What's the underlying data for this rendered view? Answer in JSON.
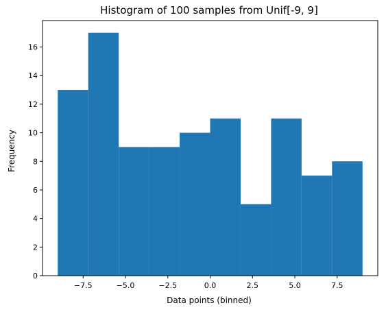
{
  "chart_data": {
    "type": "bar",
    "title": "Histogram of 100 samples from Unif[-9, 9]",
    "xlabel": "Data points (binned)",
    "ylabel": "Frequency",
    "bin_edges": [
      -9.0,
      -7.2,
      -5.4,
      -3.6,
      -1.8,
      0.0,
      1.8,
      3.6,
      5.4,
      7.2,
      9.0
    ],
    "values": [
      13,
      17,
      9,
      9,
      10,
      11,
      5,
      11,
      7,
      8
    ],
    "xlim": [
      -9.9,
      9.9
    ],
    "ylim": [
      0,
      17.85
    ],
    "xticks": [
      -7.5,
      -5.0,
      -2.5,
      0.0,
      2.5,
      5.0,
      7.5
    ],
    "xtick_labels": [
      "−7.5",
      "−5.0",
      "−2.5",
      "0.0",
      "2.5",
      "5.0",
      "7.5"
    ],
    "yticks": [
      0,
      2,
      4,
      6,
      8,
      10,
      12,
      14,
      16
    ],
    "ytick_labels": [
      "0",
      "2",
      "4",
      "6",
      "8",
      "10",
      "12",
      "14",
      "16"
    ],
    "bar_color": "#1f77b4",
    "grid": false,
    "legend": "none"
  }
}
